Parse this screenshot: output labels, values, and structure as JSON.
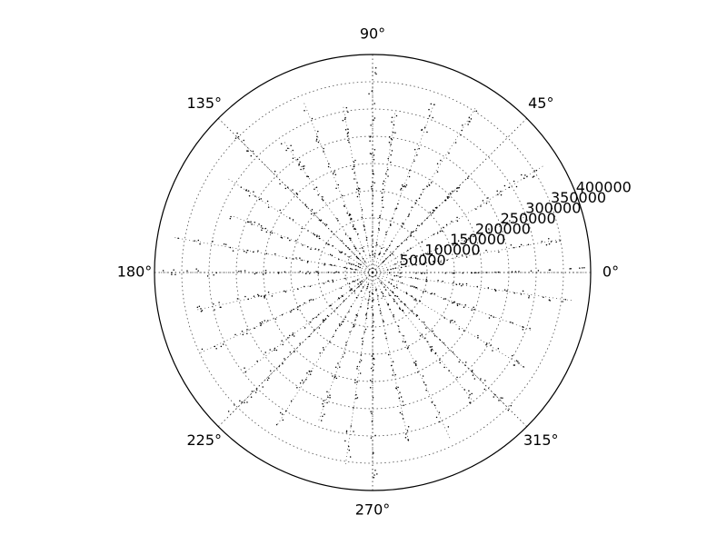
{
  "chart_data": {
    "type": "scatter",
    "projection": "polar",
    "title": "",
    "xlabel": "",
    "ylabel": "",
    "theta_unit": "degrees",
    "theta_zero_location": "east",
    "theta_direction": "counterclockwise",
    "rlim": [
      0,
      400000
    ],
    "angular_ticks": [
      "0°",
      "45°",
      "90°",
      "135°",
      "180°",
      "225°",
      "270°",
      "315°"
    ],
    "radial_ticks": [
      50000,
      100000,
      150000,
      200000,
      250000,
      300000,
      350000,
      400000
    ],
    "radial_tick_labels": [
      "50000",
      "100000",
      "150000",
      "200000",
      "250000",
      "300000",
      "350000",
      "400000"
    ],
    "radial_label_angle_deg": 22.5,
    "grid": true,
    "grid_style": "dotted",
    "marker": "point",
    "marker_color": "#000000",
    "series": [
      {
        "values": [
          {
            "theta": 0,
            "r": 390000
          },
          {
            "theta": 10,
            "r": 350000
          },
          {
            "theta": 20,
            "r": 300000
          },
          {
            "theta": 32,
            "r": 370000
          },
          {
            "theta": 45,
            "r": 250000
          },
          {
            "theta": 58,
            "r": 360000
          },
          {
            "theta": 70,
            "r": 330000
          },
          {
            "theta": 82,
            "r": 300000
          },
          {
            "theta": 90,
            "r": 380000
          },
          {
            "theta": 100,
            "r": 310000
          },
          {
            "theta": 112,
            "r": 340000
          },
          {
            "theta": 124,
            "r": 290000
          },
          {
            "theta": 135,
            "r": 360000
          },
          {
            "theta": 147,
            "r": 320000
          },
          {
            "theta": 158,
            "r": 280000
          },
          {
            "theta": 170,
            "r": 370000
          },
          {
            "theta": 180,
            "r": 390000
          },
          {
            "theta": 192,
            "r": 330000
          },
          {
            "theta": 205,
            "r": 350000
          },
          {
            "theta": 218,
            "r": 300000
          },
          {
            "theta": 225,
            "r": 370000
          },
          {
            "theta": 238,
            "r": 330000
          },
          {
            "theta": 250,
            "r": 290000
          },
          {
            "theta": 262,
            "r": 360000
          },
          {
            "theta": 270,
            "r": 380000
          },
          {
            "theta": 282,
            "r": 320000
          },
          {
            "theta": 295,
            "r": 340000
          },
          {
            "theta": 308,
            "r": 300000
          },
          {
            "theta": 315,
            "r": 360000
          },
          {
            "theta": 328,
            "r": 330000
          },
          {
            "theta": 340,
            "r": 310000
          },
          {
            "theta": 352,
            "r": 370000
          }
        ]
      }
    ]
  }
}
